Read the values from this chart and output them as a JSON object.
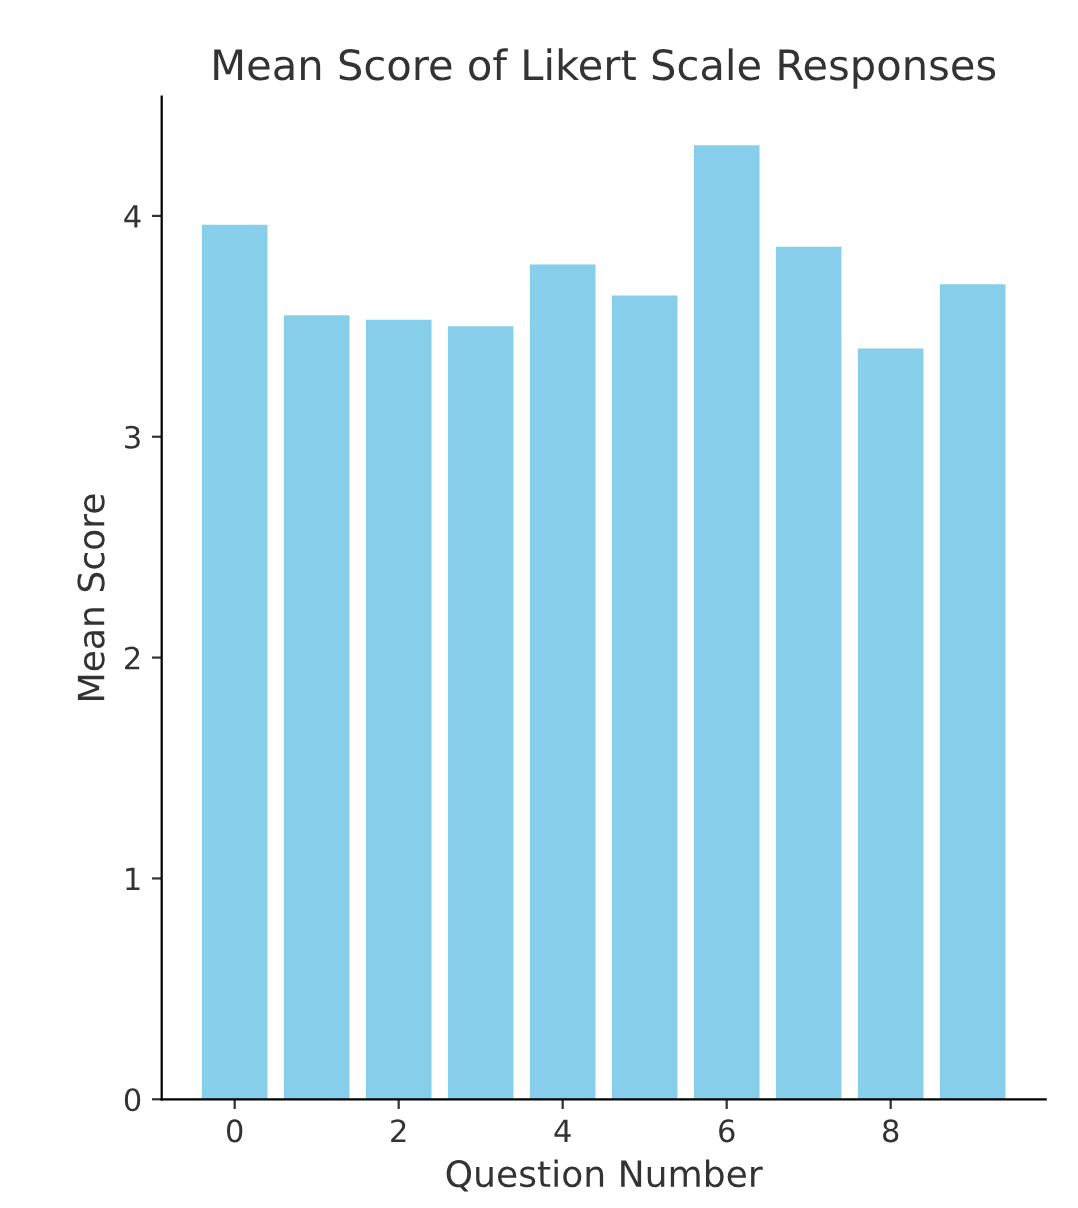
{
  "chart_data": {
    "type": "bar",
    "title": "Mean Score of Likert Scale Responses",
    "xlabel": "Question Number",
    "ylabel": "Mean Score",
    "x": [
      0,
      1,
      2,
      3,
      4,
      5,
      6,
      7,
      8,
      9
    ],
    "values": [
      3.96,
      3.55,
      3.53,
      3.5,
      3.78,
      3.64,
      4.32,
      3.86,
      3.4,
      3.69
    ],
    "color": "#87ceeb",
    "xlim": [
      -0.89,
      9.89
    ],
    "xticks": [
      0,
      2,
      4,
      6,
      8
    ],
    "ylim": [
      0,
      4.54
    ],
    "yticks": [
      0,
      1,
      2,
      3,
      4
    ],
    "grid": false
  }
}
